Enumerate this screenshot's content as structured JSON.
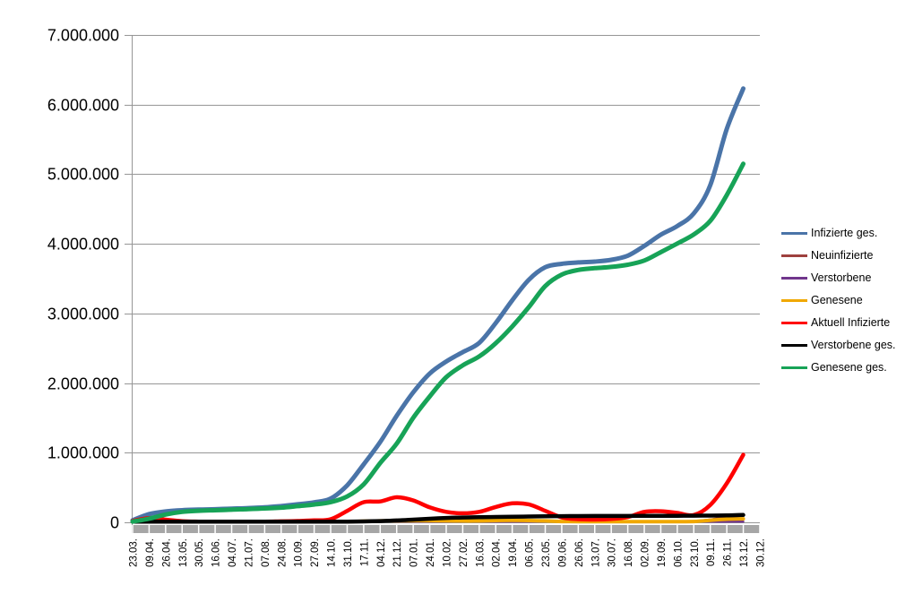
{
  "chart_data": {
    "type": "line",
    "title": "",
    "xlabel": "",
    "ylabel": "",
    "ylim": [
      0,
      7000000
    ],
    "y_tick_step": 1000000,
    "y_tick_labels": [
      "0",
      "1.000.000",
      "2.000.000",
      "3.000.000",
      "4.000.000",
      "5.000.000",
      "6.000.000",
      "7.000.000"
    ],
    "grid": true,
    "legend_position": "right",
    "categories": [
      "23.03.",
      "09.04.",
      "26.04.",
      "13.05.",
      "30.05.",
      "16.06.",
      "04.07.",
      "21.07.",
      "07.08.",
      "24.08.",
      "10.09.",
      "27.09.",
      "14.10.",
      "31.10.",
      "17.11.",
      "04.12.",
      "21.12.",
      "07.01.",
      "24.01.",
      "10.02.",
      "27.02.",
      "16.03.",
      "02.04.",
      "19.04.",
      "06.05.",
      "23.05.",
      "09.06.",
      "26.06.",
      "13.07.",
      "30.07.",
      "16.08.",
      "02.09.",
      "19.09.",
      "06.10.",
      "23.10.",
      "09.11.",
      "26.11.",
      "13.12.",
      "30.12."
    ],
    "series": [
      {
        "name": "Infizierte ges.",
        "color": "#4A74A8",
        "width": 5,
        "values": [
          30000,
          118000,
          157000,
          174000,
          183000,
          188000,
          197000,
          204000,
          215000,
          233000,
          258000,
          287000,
          341000,
          532000,
          833000,
          1153000,
          1530000,
          1866000,
          2137000,
          2310000,
          2444000,
          2578000,
          2862000,
          3188000,
          3482000,
          3663000,
          3712000,
          3733000,
          3745000,
          3770000,
          3830000,
          3970000,
          4130000,
          4255000,
          4437000,
          4844000,
          5650000,
          6230000,
          null
        ]
      },
      {
        "name": "Neuinfizierte",
        "color": "#9E413E",
        "width": 2.5,
        "values": [
          4000,
          5000,
          2000,
          1000,
          700,
          400,
          450,
          550,
          1000,
          1500,
          1700,
          2100,
          6600,
          19000,
          17500,
          23000,
          22500,
          26000,
          12500,
          8000,
          9700,
          13500,
          18500,
          20500,
          18000,
          7500,
          4700,
          1200,
          1500,
          2800,
          5600,
          13000,
          7500,
          11000,
          15500,
          40000,
          76000,
          50000,
          null
        ]
      },
      {
        "name": "Verstorbene",
        "color": "#70368C",
        "width": 2.5,
        "values": [
          50,
          180,
          200,
          110,
          50,
          30,
          15,
          10,
          10,
          10,
          10,
          15,
          30,
          80,
          200,
          400,
          700,
          900,
          850,
          600,
          400,
          250,
          200,
          250,
          250,
          200,
          100,
          70,
          40,
          30,
          25,
          40,
          60,
          70,
          90,
          170,
          300,
          400,
          null
        ]
      },
      {
        "name": "Genesene",
        "color": "#F0A800",
        "width": 4,
        "values": [
          2000,
          4500,
          3500,
          1800,
          900,
          600,
          500,
          400,
          700,
          1100,
          1500,
          1800,
          3000,
          8000,
          15000,
          20000,
          22000,
          25000,
          24000,
          22000,
          20000,
          21000,
          26000,
          28000,
          26000,
          20000,
          12000,
          6000,
          3000,
          1800,
          3500,
          8000,
          10000,
          9000,
          11000,
          30000,
          45000,
          50000,
          null
        ]
      },
      {
        "name": "Aktuell Infizierte",
        "color": "#FF0000",
        "width": 4.5,
        "values": [
          20000,
          62000,
          39000,
          17000,
          10000,
          6500,
          6500,
          7000,
          9500,
          14000,
          19000,
          28000,
          45000,
          165000,
          290000,
          300000,
          360000,
          315000,
          215000,
          150000,
          130000,
          150000,
          220000,
          273000,
          258000,
          165000,
          70000,
          45000,
          40000,
          48000,
          75000,
          150000,
          160000,
          135000,
          105000,
          250000,
          560000,
          970000,
          null
        ]
      },
      {
        "name": "Verstorbene ges.",
        "color": "#000000",
        "width": 4.5,
        "values": [
          500,
          2500,
          5900,
          7900,
          8600,
          8900,
          9100,
          9200,
          9200,
          9300,
          9400,
          9500,
          9700,
          10500,
          13000,
          18500,
          27000,
          38000,
          52000,
          63000,
          70000,
          74000,
          77000,
          80500,
          84000,
          87000,
          89000,
          90500,
          91200,
          91700,
          92000,
          92500,
          93200,
          94000,
          95300,
          97000,
          100500,
          106000,
          null
        ]
      },
      {
        "name": "Genesene ges.",
        "color": "#17A357",
        "width": 5,
        "values": [
          10000,
          53000,
          112000,
          150000,
          166000,
          174000,
          182000,
          190000,
          199000,
          211000,
          233000,
          256000,
          291000,
          372000,
          545000,
          852000,
          1130000,
          1500000,
          1808000,
          2084000,
          2254000,
          2383000,
          2572000,
          2813000,
          3090000,
          3393000,
          3558000,
          3625000,
          3650000,
          3668000,
          3700000,
          3760000,
          3880000,
          4005000,
          4135000,
          4330000,
          4700000,
          5150000,
          null
        ]
      }
    ],
    "style": {
      "background": "#FFFFFF",
      "gridline_color": "#969696",
      "axis_line_color": "#969696",
      "x_axis_band_color": "#A6A6A6",
      "x_axis_tick_color": "#FFFFFF",
      "y_label_color": "#000000",
      "x_label_color": "#000000"
    }
  }
}
